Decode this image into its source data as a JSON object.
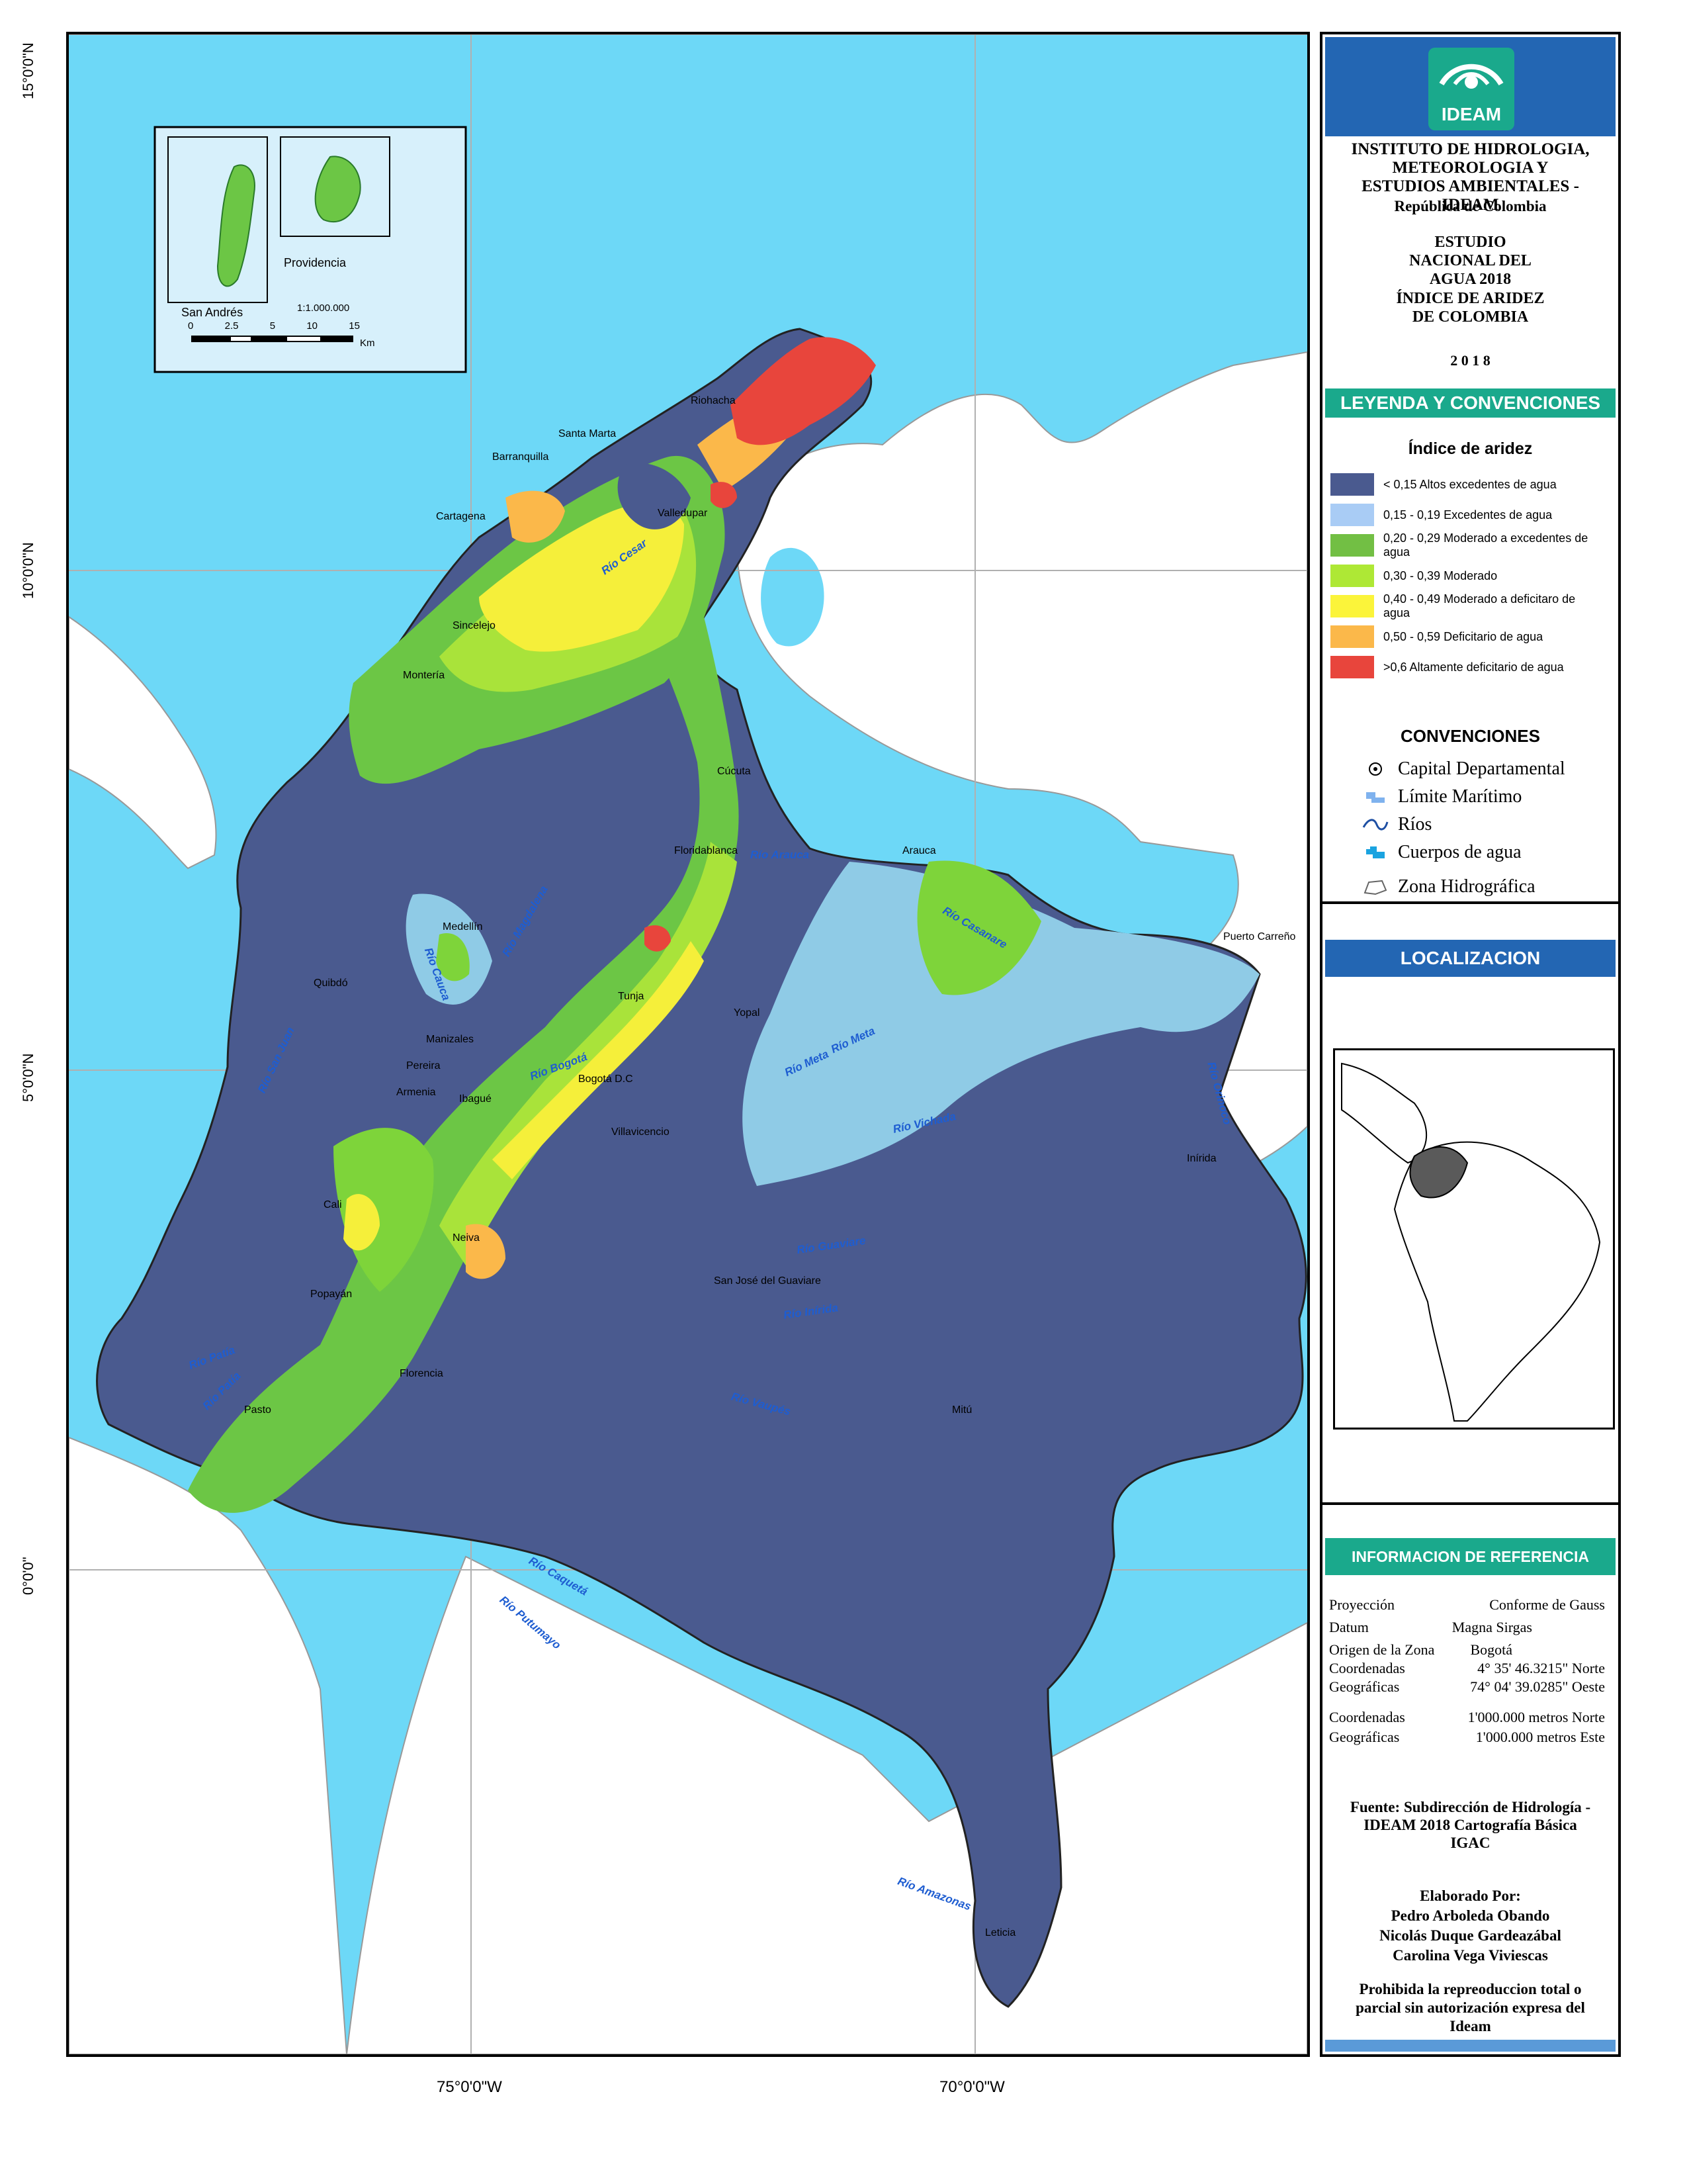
{
  "map": {
    "lat_labels": [
      "15°0'0\"N",
      "10°0'0\"N",
      "5°0'0\"N",
      "0°0'0\""
    ],
    "lon_labels": [
      "75°0'0\"W",
      "70°0'0\"W"
    ],
    "inset": {
      "san_andres": "San Andrés",
      "providencia": "Providencia",
      "scale_text": "1:1.000.000",
      "scale_ticks": [
        "0",
        "2.5",
        "5",
        "10",
        "15"
      ],
      "scale_unit": "Km"
    },
    "cities": [
      "Riohacha",
      "Santa Marta",
      "Barranquilla",
      "Valledupar",
      "Cartagena",
      "Sincelejo",
      "Montería",
      "Cúcuta",
      "Floridablanca",
      "Arauca",
      "Puerto Carreño",
      "Medellín",
      "Quibdó",
      "Tunja",
      "Yopal",
      "Manizales",
      "Pereira",
      "Armenia",
      "Ibagué",
      "Bogotá D.C",
      "Villavicencio",
      "Inírida",
      "Cali",
      "Neiva",
      "Popayán",
      "San José del Guaviare",
      "Florencia",
      "Pasto",
      "Mitú",
      "Leticia"
    ],
    "rivers": [
      "Río Cesar",
      "Río Arauca",
      "Río Casanare",
      "Río Magdalena",
      "Río Cauca",
      "Río San Juan",
      "Río Bogotá",
      "Río Meta",
      "Río Meta",
      "Río Vichada",
      "Río Orinoco",
      "Río Guaviare",
      "Río Inírida",
      "Río Patía",
      "Río Patía",
      "Río Vaupés",
      "Río Caquetá",
      "Río Putumayo",
      "Río Amazonas"
    ]
  },
  "panel": {
    "org_name": "INSTITUTO DE HIDROLOGIA, METEOROLOGIA Y ESTUDIOS AMBIENTALES - IDEAM",
    "country": "República de Colombia",
    "study": "ESTUDIO NACIONAL DEL AGUA 2018",
    "map_title": "ÍNDICE DE ARIDEZ DE COLOMBIA",
    "year": "2 0 1 8",
    "legend_header": "LEYENDA Y CONVENCIONES",
    "legend_title": "Índice de aridez",
    "legend_items": [
      {
        "label": "< 0,15 Altos excedentes de agua",
        "color": "#4a5a8f"
      },
      {
        "label": "0,15 - 0,19 Excedentes de agua",
        "color": "#a9ccf5"
      },
      {
        "label": "0,20 - 0,29 Moderado a excedentes de agua",
        "color": "#72bf44"
      },
      {
        "label": "0,30 - 0,39 Moderado",
        "color": "#aee835"
      },
      {
        "label": "0,40 - 0,49 Moderado a deficitaro de agua",
        "color": "#fbf43a"
      },
      {
        "label": "0,50 - 0,59 Deficitario de agua",
        "color": "#fbb84a"
      },
      {
        "label": ">0,6 Altamente deficitario de agua",
        "color": "#e8453c"
      }
    ],
    "conventions_title": "CONVENCIONES",
    "conventions": [
      "Capital Departamental",
      "Límite Marítimo",
      "Ríos",
      "Cuerpos de agua",
      "Zona Hidrográfica"
    ],
    "location_header": "LOCALIZACION",
    "reference_header": "INFORMACION DE REFERENCIA",
    "reference": [
      {
        "k": "Proyección",
        "v": "Conforme de Gauss"
      },
      {
        "k": "Datum",
        "v": "Magna Sirgas"
      },
      {
        "k": "Origen de la Zona",
        "v": "Bogotá"
      },
      {
        "k": "Coordenadas",
        "v": "4° 35' 46.3215\" Norte"
      },
      {
        "k": "Geográficas",
        "v": "74° 04' 39.0285\" Oeste"
      },
      {
        "k": "Coordenadas",
        "v": "1'000.000 metros Norte"
      },
      {
        "k": "Geográficas",
        "v": "1'000.000 metros Este"
      }
    ],
    "source": "Fuente: Subdirección de Hidrología - IDEAM 2018 Cartografía Básica IGAC",
    "made_by_title": "Elaborado Por:",
    "authors": [
      "Pedro Arboleda Obando",
      "Nicolás Duque Gardeazábal",
      "Carolina Vega Viviescas"
    ],
    "notice": "Prohibida la repreoduccion total o parcial sin autorización expresa del Ideam",
    "logo_text": "IDEAM",
    "colors": {
      "teal": "#1aa98c",
      "blue": "#2366b3",
      "sea": "#6dd8f7",
      "land": "#ffffff"
    }
  }
}
